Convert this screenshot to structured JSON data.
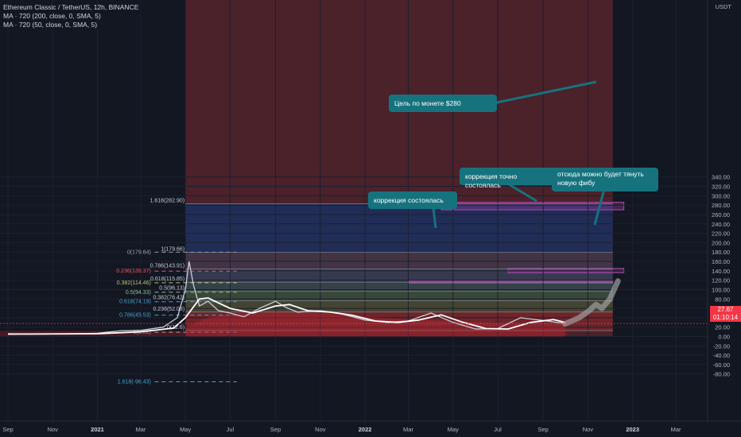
{
  "legend": {
    "title": "Ethereum Classic / TetherUS, 12h, BINANCE",
    "ma1": "MA · 720 (200, close, 0, SMA, 5)",
    "ma2": "MA · 720 (50, close, 0, SMA, 5)"
  },
  "currency": "USDT",
  "price_badge": {
    "price": "27.67",
    "countdown": "01:10:14"
  },
  "colors": {
    "background": "#131722",
    "candles": "#c9cdd6",
    "ma": "#ffffff",
    "red_zone": "#7a2a32",
    "blue_zone": "#1e2e5a",
    "callout": "#16737e",
    "badge": "#f23645",
    "target_box": "#a03fa0"
  },
  "annotations": {
    "target": "Цель по монете $280",
    "correction_exact": "коррекция точно состоялась",
    "pull_fib": "отсюда можно будет тянуть новую фибу",
    "correction_done": "коррекция состоялась"
  },
  "fib_left": [
    {
      "label": "0(179.64)",
      "price": 179.64
    },
    {
      "label": "0.236(139.37)",
      "price": 139.37
    },
    {
      "label": "0.382(114.46)",
      "price": 114.46
    },
    {
      "label": "0.5(94.33)",
      "price": 94.33
    },
    {
      "label": "0.618(74.19)",
      "price": 74.19
    },
    {
      "label": "0.786(45.53)",
      "price": 45.53
    },
    {
      "label": "1(9.02)",
      "price": 9.02
    },
    {
      "label": "1.618(-96.43)",
      "price": -96.43
    }
  ],
  "fib_right": [
    {
      "label": "1.618(282.90)",
      "price": 282.9
    },
    {
      "label": "1(179.66)",
      "price": 179.66
    },
    {
      "label": "0.786(143.91)",
      "price": 143.91
    },
    {
      "label": "0.618(115.85)",
      "price": 115.85
    },
    {
      "label": "0.5(96.13)",
      "price": 96.13
    },
    {
      "label": "0.382(76.42)",
      "price": 76.42
    },
    {
      "label": "0.236(52.03)",
      "price": 52.03
    },
    {
      "label": "0(12.6)",
      "price": 12.6
    }
  ],
  "chart_data": {
    "type": "line",
    "title": "Ethereum Classic / TetherUS, 12h, BINANCE",
    "ylabel": "USDT",
    "y_range": [
      -95,
      360
    ],
    "x_range": [
      "2020-09-01",
      "2023-03-15"
    ],
    "y_ticks": [
      -80,
      -60,
      -40,
      -20,
      0,
      20,
      40,
      60,
      80,
      100,
      120,
      140,
      160,
      180,
      200,
      220,
      240,
      260,
      280,
      300,
      320,
      340
    ],
    "x_ticks": [
      {
        "label": "Sep",
        "date": "2020-09-01"
      },
      {
        "label": "Nov",
        "date": "2020-11-01"
      },
      {
        "label": "2021",
        "date": "2021-01-01"
      },
      {
        "label": "Mar",
        "date": "2021-03-01"
      },
      {
        "label": "May",
        "date": "2021-05-01"
      },
      {
        "label": "Jul",
        "date": "2021-07-01"
      },
      {
        "label": "Sep",
        "date": "2021-09-01"
      },
      {
        "label": "Nov",
        "date": "2021-11-01"
      },
      {
        "label": "2022",
        "date": "2022-01-01"
      },
      {
        "label": "Mar",
        "date": "2022-03-01"
      },
      {
        "label": "May",
        "date": "2022-05-01"
      },
      {
        "label": "Jul",
        "date": "2022-07-01"
      },
      {
        "label": "Sep",
        "date": "2022-09-01"
      },
      {
        "label": "Nov",
        "date": "2022-11-01"
      },
      {
        "label": "2023",
        "date": "2023-01-01"
      },
      {
        "label": "Mar",
        "date": "2023-03-01"
      }
    ],
    "series": [
      {
        "name": "price",
        "points": [
          [
            "2020-09-01",
            6
          ],
          [
            "2020-10-01",
            5
          ],
          [
            "2020-11-01",
            5.5
          ],
          [
            "2020-12-01",
            6
          ],
          [
            "2021-01-01",
            7
          ],
          [
            "2021-02-01",
            12
          ],
          [
            "2021-03-01",
            13
          ],
          [
            "2021-04-01",
            20
          ],
          [
            "2021-04-20",
            40
          ],
          [
            "2021-05-01",
            100
          ],
          [
            "2021-05-06",
            160
          ],
          [
            "2021-05-12",
            110
          ],
          [
            "2021-05-20",
            65
          ],
          [
            "2021-06-01",
            75
          ],
          [
            "2021-06-15",
            55
          ],
          [
            "2021-07-01",
            50
          ],
          [
            "2021-07-20",
            42
          ],
          [
            "2021-08-10",
            60
          ],
          [
            "2021-09-01",
            75
          ],
          [
            "2021-09-15",
            62
          ],
          [
            "2021-10-01",
            52
          ],
          [
            "2021-11-01",
            55
          ],
          [
            "2021-12-01",
            48
          ],
          [
            "2022-01-01",
            35
          ],
          [
            "2022-02-01",
            30
          ],
          [
            "2022-03-01",
            33
          ],
          [
            "2022-04-01",
            50
          ],
          [
            "2022-05-01",
            30
          ],
          [
            "2022-06-01",
            16
          ],
          [
            "2022-07-01",
            17
          ],
          [
            "2022-08-01",
            40
          ],
          [
            "2022-09-01",
            34
          ],
          [
            "2022-10-01",
            27.67
          ]
        ]
      },
      {
        "name": "MA (50)",
        "points": [
          [
            "2020-09-01",
            5
          ],
          [
            "2021-01-01",
            6
          ],
          [
            "2021-03-01",
            10
          ],
          [
            "2021-04-15",
            18
          ],
          [
            "2021-05-01",
            40
          ],
          [
            "2021-05-20",
            80
          ],
          [
            "2021-06-01",
            82
          ],
          [
            "2021-07-01",
            60
          ],
          [
            "2021-08-01",
            50
          ],
          [
            "2021-09-01",
            65
          ],
          [
            "2021-09-20",
            68
          ],
          [
            "2021-10-15",
            55
          ],
          [
            "2021-11-15",
            52
          ],
          [
            "2021-12-15",
            45
          ],
          [
            "2022-01-15",
            33
          ],
          [
            "2022-02-15",
            30
          ],
          [
            "2022-03-15",
            35
          ],
          [
            "2022-04-15",
            46
          ],
          [
            "2022-05-15",
            30
          ],
          [
            "2022-06-15",
            17
          ],
          [
            "2022-07-15",
            16
          ],
          [
            "2022-08-15",
            30
          ],
          [
            "2022-09-15",
            36
          ],
          [
            "2022-10-01",
            30
          ]
        ]
      },
      {
        "name": "MA (200)",
        "points": [
          [
            "2021-05-01",
            20
          ],
          [
            "2021-06-01",
            40
          ],
          [
            "2021-07-01",
            48
          ],
          [
            "2021-09-01",
            52
          ],
          [
            "2021-11-01",
            50
          ],
          [
            "2022-01-01",
            42
          ],
          [
            "2022-03-01",
            36
          ],
          [
            "2022-05-01",
            33
          ],
          [
            "2022-07-01",
            28
          ],
          [
            "2022-09-01",
            30
          ],
          [
            "2022-10-01",
            27
          ]
        ]
      },
      {
        "name": "projection",
        "points": [
          [
            "2022-10-01",
            27
          ],
          [
            "2022-10-20",
            40
          ],
          [
            "2022-11-01",
            53
          ],
          [
            "2022-11-12",
            68
          ],
          [
            "2022-11-20",
            60
          ],
          [
            "2022-12-01",
            80
          ],
          [
            "2022-12-12",
            118
          ]
        ]
      }
    ],
    "zones": [
      {
        "name": "red_zone",
        "from": "2021-05-01",
        "to": "2022-12-05",
        "y_range": [
          0,
          360
        ]
      },
      {
        "name": "blue_zone",
        "from": "2021-05-01",
        "to": "2022-12-05",
        "y_range": [
          179.66,
          282.9
        ]
      },
      {
        "name": "target_box",
        "from": "2022-04-15",
        "to": "2022-12-20",
        "y_range": [
          270,
          286
        ]
      },
      {
        "name": "box_145",
        "from": "2022-07-15",
        "to": "2022-12-20",
        "y_range": [
          136,
          145
        ]
      },
      {
        "name": "box_115",
        "from": "2022-03-01",
        "to": "2022-12-05",
        "y_range": [
          114,
          118
        ]
      }
    ]
  }
}
